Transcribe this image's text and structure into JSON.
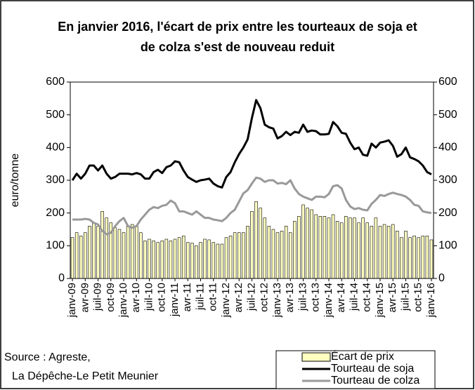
{
  "chart_data": {
    "type": "bar",
    "title": "En janvier 2016, l'écart de prix entre les tourteaux de soja et de colza s'est de nouveau reduit",
    "y_label": "euro/tonne",
    "source_lines": [
      "Source : Agreste,",
      "La Dépêche-Le Petit Meunier"
    ],
    "categories": [
      "janv-09",
      null,
      null,
      "avr-09",
      null,
      null,
      "juil-09",
      null,
      null,
      "oct-09",
      null,
      null,
      "janv-10",
      null,
      null,
      "avr-10",
      null,
      null,
      "juil-10",
      null,
      null,
      "oct-10",
      null,
      null,
      "janv-11",
      null,
      null,
      "avr-11",
      null,
      null,
      "juil-11",
      null,
      null,
      "oct-11",
      null,
      null,
      "janv-12",
      null,
      null,
      "avr-12",
      null,
      null,
      "juil-12",
      null,
      null,
      "oct-12",
      null,
      null,
      "janv-13",
      null,
      null,
      "avr-13",
      null,
      null,
      "juil-13",
      null,
      null,
      "oct-13",
      null,
      null,
      "janv-14",
      null,
      null,
      "avr-14",
      null,
      null,
      "juil-14",
      null,
      null,
      "oct-14",
      null,
      null,
      "janv-15",
      null,
      null,
      "avr-15",
      null,
      null,
      "juil-15",
      null,
      null,
      "oct-15",
      null,
      null,
      "janv-16"
    ],
    "series": [
      {
        "name": "Écart de prix",
        "type": "bar",
        "color": "#ffffc0",
        "values": [
          125,
          140,
          130,
          140,
          160,
          170,
          160,
          205,
          185,
          170,
          155,
          150,
          140,
          160,
          165,
          160,
          140,
          115,
          120,
          115,
          110,
          115,
          120,
          115,
          120,
          125,
          130,
          110,
          108,
          100,
          110,
          120,
          118,
          110,
          105,
          105,
          125,
          130,
          140,
          140,
          140,
          160,
          205,
          235,
          215,
          185,
          160,
          150,
          140,
          145,
          160,
          140,
          175,
          190,
          225,
          215,
          210,
          195,
          190,
          190,
          185,
          195,
          175,
          170,
          190,
          185,
          185,
          170,
          185,
          170,
          160,
          185,
          160,
          165,
          160,
          165,
          145,
          125,
          145,
          125,
          130,
          125,
          130,
          130,
          118
        ]
      },
      {
        "name": "Tourteau de soja",
        "type": "line",
        "color": "#000000",
        "values": [
          300,
          320,
          305,
          320,
          345,
          345,
          330,
          345,
          320,
          305,
          310,
          320,
          320,
          320,
          318,
          322,
          318,
          305,
          305,
          325,
          332,
          322,
          340,
          345,
          358,
          355,
          330,
          310,
          302,
          295,
          300,
          302,
          305,
          290,
          282,
          278,
          310,
          325,
          355,
          380,
          400,
          425,
          490,
          545,
          520,
          470,
          462,
          458,
          428,
          435,
          448,
          438,
          448,
          445,
          470,
          448,
          452,
          450,
          440,
          440,
          442,
          478,
          465,
          445,
          442,
          415,
          395,
          400,
          378,
          375,
          412,
          400,
          415,
          418,
          422,
          405,
          372,
          380,
          400,
          370,
          365,
          358,
          345,
          325,
          318
        ]
      },
      {
        "name": "Tourteau de colza",
        "type": "line",
        "color": "#999999",
        "values": [
          180,
          180,
          180,
          182,
          180,
          170,
          165,
          145,
          135,
          140,
          160,
          175,
          185,
          160,
          155,
          160,
          180,
          195,
          210,
          218,
          215,
          222,
          225,
          238,
          230,
          205,
          205,
          200,
          195,
          205,
          195,
          185,
          185,
          180,
          178,
          175,
          185,
          200,
          210,
          235,
          260,
          270,
          290,
          308,
          305,
          295,
          300,
          300,
          290,
          292,
          288,
          300,
          275,
          258,
          250,
          245,
          240,
          250,
          250,
          248,
          258,
          282,
          285,
          275,
          240,
          220,
          212,
          215,
          210,
          208,
          228,
          240,
          255,
          252,
          258,
          262,
          258,
          255,
          250,
          240,
          225,
          222,
          205,
          202,
          200
        ]
      }
    ],
    "ylim": [
      0,
      600
    ],
    "yticks": [
      0,
      100,
      200,
      300,
      400,
      500,
      600
    ],
    "y2lim": [
      0,
      600
    ],
    "y2ticks": [
      0,
      100,
      200,
      300,
      400,
      500,
      600
    ],
    "grid": false,
    "legend": "bottom right"
  }
}
